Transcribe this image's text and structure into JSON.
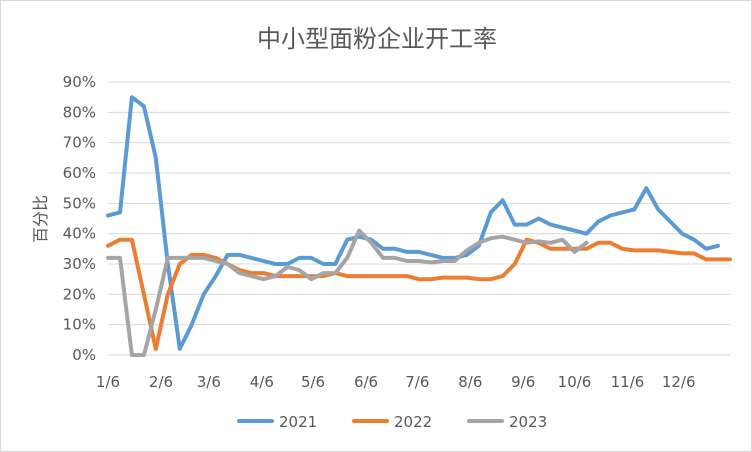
{
  "chart_data": {
    "type": "line",
    "title": "中小型面粉企业开工率",
    "ylabel": "百分比",
    "xlabel": "",
    "ylim": [
      0,
      0.9
    ],
    "y_ticks": [
      "0%",
      "10%",
      "20%",
      "30%",
      "40%",
      "50%",
      "60%",
      "70%",
      "80%",
      "90%"
    ],
    "x_tick_labels": [
      "1/6",
      "2/6",
      "3/6",
      "4/6",
      "5/6",
      "6/6",
      "7/6",
      "8/6",
      "9/6",
      "10/6",
      "11/6",
      "12/6"
    ],
    "x_unit": "week",
    "x_range": [
      1,
      53
    ],
    "x_tick_positions": [
      1,
      5.43,
      9.43,
      13.86,
      18.14,
      22.57,
      26.86,
      31.29,
      35.71,
      40,
      44.43,
      48.71
    ],
    "grid": "horizontal",
    "legend": "bottom",
    "colors": {
      "2021": "#5b9bd5",
      "2022": "#ed7d31",
      "2023": "#a5a5a5"
    },
    "series": [
      {
        "name": "2021",
        "points": [
          [
            1,
            0.46
          ],
          [
            2,
            0.47
          ],
          [
            3,
            0.85
          ],
          [
            4,
            0.82
          ],
          [
            5,
            0.65
          ],
          [
            6,
            0.3
          ],
          [
            7,
            0.02
          ],
          [
            8,
            0.1
          ],
          [
            9,
            0.2
          ],
          [
            10,
            0.26
          ],
          [
            11,
            0.33
          ],
          [
            12,
            0.33
          ],
          [
            13,
            0.32
          ],
          [
            14,
            0.31
          ],
          [
            15,
            0.3
          ],
          [
            16,
            0.3
          ],
          [
            17,
            0.32
          ],
          [
            18,
            0.32
          ],
          [
            19,
            0.3
          ],
          [
            20,
            0.3
          ],
          [
            21,
            0.38
          ],
          [
            22,
            0.39
          ],
          [
            23,
            0.38
          ],
          [
            24,
            0.35
          ],
          [
            25,
            0.35
          ],
          [
            26,
            0.34
          ],
          [
            27,
            0.34
          ],
          [
            28,
            0.33
          ],
          [
            29,
            0.32
          ],
          [
            30,
            0.32
          ],
          [
            31,
            0.33
          ],
          [
            32,
            0.36
          ],
          [
            33,
            0.47
          ],
          [
            34,
            0.51
          ],
          [
            35,
            0.43
          ],
          [
            36,
            0.43
          ],
          [
            37,
            0.45
          ],
          [
            38,
            0.43
          ],
          [
            39,
            0.42
          ],
          [
            40,
            0.41
          ],
          [
            41,
            0.4
          ],
          [
            42,
            0.44
          ],
          [
            43,
            0.46
          ],
          [
            44,
            0.47
          ],
          [
            45,
            0.48
          ],
          [
            46,
            0.55
          ],
          [
            47,
            0.48
          ],
          [
            48,
            0.44
          ],
          [
            49,
            0.4
          ],
          [
            50,
            0.38
          ],
          [
            51,
            0.35
          ],
          [
            52,
            0.36
          ]
        ]
      },
      {
        "name": "2022",
        "points": [
          [
            1,
            0.36
          ],
          [
            2,
            0.38
          ],
          [
            3,
            0.38
          ],
          [
            4,
            0.2
          ],
          [
            5,
            0.02
          ],
          [
            6,
            0.2
          ],
          [
            7,
            0.3
          ],
          [
            8,
            0.33
          ],
          [
            9,
            0.33
          ],
          [
            10,
            0.32
          ],
          [
            11,
            0.3
          ],
          [
            12,
            0.28
          ],
          [
            13,
            0.27
          ],
          [
            14,
            0.27
          ],
          [
            15,
            0.26
          ],
          [
            16,
            0.26
          ],
          [
            17,
            0.26
          ],
          [
            18,
            0.26
          ],
          [
            19,
            0.26
          ],
          [
            20,
            0.27
          ],
          [
            21,
            0.26
          ],
          [
            22,
            0.26
          ],
          [
            23,
            0.26
          ],
          [
            24,
            0.26
          ],
          [
            25,
            0.26
          ],
          [
            26,
            0.26
          ],
          [
            27,
            0.25
          ],
          [
            28,
            0.25
          ],
          [
            29,
            0.255
          ],
          [
            30,
            0.255
          ],
          [
            31,
            0.255
          ],
          [
            32,
            0.25
          ],
          [
            33,
            0.25
          ],
          [
            34,
            0.26
          ],
          [
            35,
            0.3
          ],
          [
            36,
            0.38
          ],
          [
            37,
            0.37
          ],
          [
            38,
            0.35
          ],
          [
            39,
            0.35
          ],
          [
            40,
            0.35
          ],
          [
            41,
            0.35
          ],
          [
            42,
            0.37
          ],
          [
            43,
            0.37
          ],
          [
            44,
            0.35
          ],
          [
            45,
            0.345
          ],
          [
            46,
            0.345
          ],
          [
            47,
            0.345
          ],
          [
            48,
            0.34
          ],
          [
            49,
            0.335
          ],
          [
            50,
            0.335
          ],
          [
            51,
            0.315
          ],
          [
            52,
            0.315
          ],
          [
            53,
            0.315
          ]
        ]
      },
      {
        "name": "2023",
        "points": [
          [
            1,
            0.32
          ],
          [
            2,
            0.32
          ],
          [
            3,
            0.0
          ],
          [
            4,
            0.0
          ],
          [
            5,
            0.15
          ],
          [
            6,
            0.32
          ],
          [
            7,
            0.32
          ],
          [
            8,
            0.32
          ],
          [
            9,
            0.32
          ],
          [
            10,
            0.31
          ],
          [
            11,
            0.3
          ],
          [
            12,
            0.27
          ],
          [
            13,
            0.26
          ],
          [
            14,
            0.25
          ],
          [
            15,
            0.26
          ],
          [
            16,
            0.29
          ],
          [
            17,
            0.28
          ],
          [
            18,
            0.25
          ],
          [
            19,
            0.27
          ],
          [
            20,
            0.27
          ],
          [
            21,
            0.32
          ],
          [
            22,
            0.41
          ],
          [
            23,
            0.37
          ],
          [
            24,
            0.32
          ],
          [
            25,
            0.32
          ],
          [
            26,
            0.31
          ],
          [
            27,
            0.31
          ],
          [
            28,
            0.305
          ],
          [
            29,
            0.31
          ],
          [
            30,
            0.31
          ],
          [
            31,
            0.345
          ],
          [
            32,
            0.37
          ],
          [
            33,
            0.385
          ],
          [
            34,
            0.39
          ],
          [
            35,
            0.38
          ],
          [
            36,
            0.37
          ],
          [
            37,
            0.375
          ],
          [
            38,
            0.37
          ],
          [
            39,
            0.38
          ],
          [
            40,
            0.34
          ],
          [
            41,
            0.37
          ]
        ]
      }
    ]
  }
}
